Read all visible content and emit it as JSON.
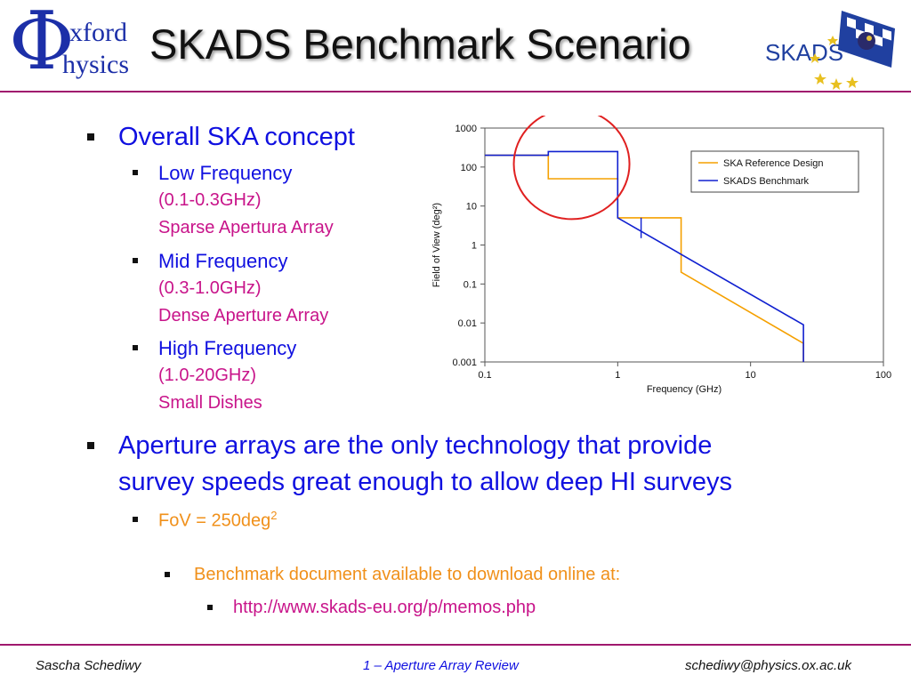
{
  "header": {
    "title": "SKADS Benchmark Scenario",
    "logo_left": {
      "glyph": "Φ",
      "word1": "xford",
      "word2": "hysics"
    },
    "logo_right": {
      "text": "SKADS"
    }
  },
  "content": {
    "bullet1": "Overall SKA concept",
    "low": {
      "label": "Low Frequency",
      "range": "(0.1-0.3GHz)",
      "desc": "Sparse Apertura Array"
    },
    "mid": {
      "label": "Mid Frequency",
      "range": "(0.3-1.0GHz)",
      "desc": "Dense Aperture Array"
    },
    "high": {
      "label": "High Frequency",
      "range": "(1.0-20GHz)",
      "desc": "Small Dishes"
    },
    "bullet2_line1": "Aperture arrays are the only technology that provide",
    "bullet2_line2": "survey speeds great enough to allow deep HI surveys",
    "fov_prefix": "FoV = 250deg",
    "fov_sup": "2",
    "benchmark": "Benchmark document available to download online at:",
    "url": "http://www.skads-eu.org/p/memos.php"
  },
  "footer": {
    "left": "Sascha Schediwy",
    "center": "1 – Aperture Array Review",
    "right": "schediwy@physics.ox.ac.uk"
  },
  "colors": {
    "accent_rule": "#a0186e",
    "bullet_blue": "#1010e0",
    "sub_magenta": "#c8148a",
    "orange": "#f0901a",
    "series_orange": "#f5a000",
    "series_blue": "#1020d0",
    "highlight_circle": "#e02020"
  },
  "chart_data": {
    "type": "line",
    "xlabel": "Frequency (GHz)",
    "ylabel": "Field of View (deg²)",
    "x_scale": "log",
    "y_scale": "log",
    "xlim": [
      0.1,
      100
    ],
    "ylim": [
      0.001,
      1000
    ],
    "x_ticks": [
      "0.1",
      "1",
      "10",
      "100"
    ],
    "y_ticks": [
      "0.001",
      "0.01",
      "0.1",
      "1",
      "10",
      "100",
      "1000"
    ],
    "legend_position": "top-right",
    "grid": false,
    "series": [
      {
        "name": "SKA Reference Design",
        "color": "#f5a000",
        "points": [
          [
            0.1,
            200
          ],
          [
            0.3,
            200
          ],
          [
            0.3,
            50
          ],
          [
            1,
            50
          ],
          [
            1,
            5
          ],
          [
            3,
            5
          ],
          [
            3,
            0.2
          ],
          [
            25,
            0.003
          ],
          [
            25,
            0.001
          ]
        ]
      },
      {
        "name": "SKADS Benchmark",
        "color": "#1020d0",
        "points": [
          [
            0.1,
            200
          ],
          [
            0.3,
            200
          ],
          [
            0.3,
            250
          ],
          [
            1,
            250
          ],
          [
            1,
            5
          ],
          [
            25,
            0.009
          ],
          [
            25,
            0.001
          ]
        ]
      }
    ],
    "annotation": {
      "type": "circle",
      "color": "#e02020",
      "description": "highlight"
    }
  }
}
